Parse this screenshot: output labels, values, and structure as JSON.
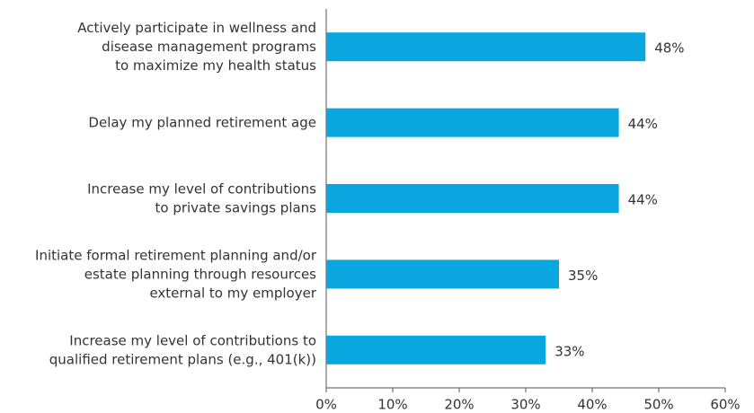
{
  "chart_data": {
    "type": "bar",
    "orientation": "horizontal",
    "categories": [
      [
        "Actively participate in wellness and",
        "disease management programs",
        "to maximize my health status"
      ],
      [
        "Delay my planned retirement age"
      ],
      [
        "Increase my level of contributions",
        "to private savings plans"
      ],
      [
        "Initiate formal retirement planning and/or",
        "estate planning through resources",
        "external to my employer"
      ],
      [
        "Increase my level of contributions to",
        "qualified retirement plans (e.g., 401(k))"
      ]
    ],
    "values": [
      48,
      44,
      44,
      35,
      33
    ],
    "value_labels": [
      "48%",
      "44%",
      "44%",
      "35%",
      "33%"
    ],
    "color": "#0aa6e0",
    "xlim": [
      0,
      60
    ],
    "xticks": [
      {
        "value": 0,
        "label": "0%"
      },
      {
        "value": 10,
        "label": "10%"
      },
      {
        "value": 20,
        "label": "20%"
      },
      {
        "value": 30,
        "label": "30%"
      },
      {
        "value": 40,
        "label": "40%"
      },
      {
        "value": 50,
        "label": "50%"
      },
      {
        "value": 60,
        "label": "60%"
      }
    ],
    "grid": false
  }
}
